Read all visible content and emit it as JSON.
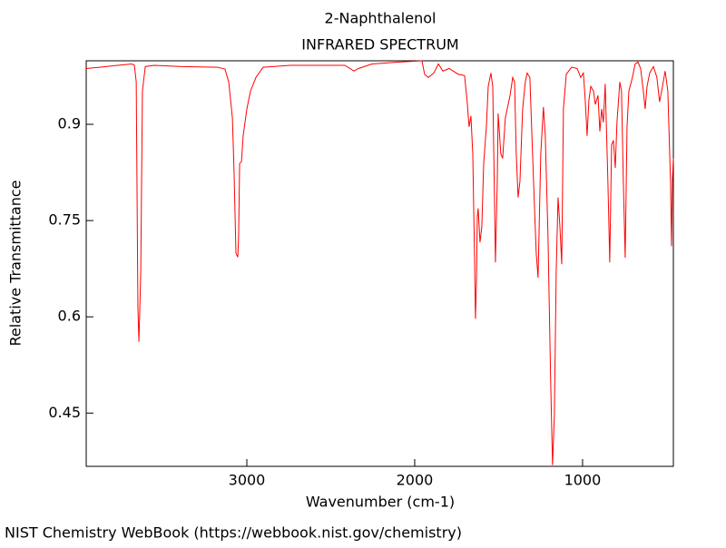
{
  "chart_data": {
    "type": "line",
    "title": "2-Naphthalenol",
    "subtitle": "INFRARED SPECTRUM",
    "x_label": "Wavenumber (cm-1)",
    "y_label": "Relative Transmittance",
    "footer": "NIST Chemistry WebBook (https://webbook.nist.gov/chemistry)",
    "xlim": [
      3957,
      459
    ],
    "ylim": [
      0.367,
      0.999
    ],
    "xticks": [
      3000,
      2000,
      1000
    ],
    "yticks": [
      0.9,
      0.75,
      0.6,
      0.45
    ],
    "series": [
      {
        "color": "#ff0000",
        "x": [
          3957,
          3876,
          3768,
          3686,
          3670,
          3659,
          3649,
          3643,
          3632,
          3622,
          3605,
          3551,
          3389,
          3173,
          3130,
          3108,
          3086,
          3076,
          3065,
          3054,
          3049,
          3043,
          3032,
          3022,
          3000,
          2978,
          2946,
          2903,
          2741,
          2416,
          2362,
          2335,
          2254,
          2092,
          1957,
          1941,
          1919,
          1886,
          1859,
          1832,
          1795,
          1741,
          1703,
          1686,
          1676,
          1665,
          1654,
          1643,
          1638,
          1632,
          1627,
          1622,
          1611,
          1600,
          1589,
          1573,
          1562,
          1546,
          1535,
          1519,
          1508,
          1503,
          1487,
          1476,
          1460,
          1432,
          1416,
          1405,
          1395,
          1384,
          1373,
          1357,
          1341,
          1330,
          1314,
          1292,
          1276,
          1265,
          1249,
          1233,
          1222,
          1206,
          1190,
          1179,
          1168,
          1157,
          1146,
          1135,
          1124,
          1114,
          1097,
          1065,
          1032,
          1011,
          995,
          984,
          973,
          962,
          951,
          935,
          924,
          908,
          897,
          886,
          876,
          865,
          849,
          838,
          827,
          816,
          805,
          795,
          778,
          768,
          757,
          746,
          735,
          724,
          703,
          687,
          670,
          654,
          638,
          627,
          616,
          600,
          578,
          557,
          541,
          524,
          508,
          492,
          476,
          470,
          465,
          459
        ],
        "values": [
          0.987,
          0.989,
          0.992,
          0.994,
          0.992,
          0.966,
          0.614,
          0.561,
          0.67,
          0.952,
          0.99,
          0.992,
          0.99,
          0.989,
          0.986,
          0.966,
          0.91,
          0.825,
          0.699,
          0.693,
          0.727,
          0.839,
          0.842,
          0.882,
          0.924,
          0.952,
          0.973,
          0.989,
          0.992,
          0.992,
          0.983,
          0.987,
          0.994,
          0.997,
          0.999,
          0.978,
          0.973,
          0.98,
          0.994,
          0.983,
          0.987,
          0.978,
          0.976,
          0.931,
          0.896,
          0.913,
          0.854,
          0.685,
          0.597,
          0.656,
          0.755,
          0.769,
          0.716,
          0.741,
          0.839,
          0.896,
          0.959,
          0.98,
          0.959,
          0.685,
          0.811,
          0.917,
          0.854,
          0.847,
          0.91,
          0.945,
          0.973,
          0.966,
          0.854,
          0.786,
          0.811,
          0.924,
          0.966,
          0.98,
          0.973,
          0.811,
          0.699,
          0.661,
          0.854,
          0.927,
          0.882,
          0.727,
          0.501,
          0.369,
          0.445,
          0.67,
          0.786,
          0.741,
          0.682,
          0.924,
          0.978,
          0.989,
          0.987,
          0.973,
          0.98,
          0.938,
          0.882,
          0.938,
          0.959,
          0.952,
          0.931,
          0.945,
          0.889,
          0.924,
          0.903,
          0.963,
          0.811,
          0.685,
          0.868,
          0.875,
          0.832,
          0.903,
          0.966,
          0.952,
          0.811,
          0.692,
          0.896,
          0.952,
          0.973,
          0.994,
          0.997,
          0.987,
          0.952,
          0.924,
          0.959,
          0.98,
          0.99,
          0.973,
          0.935,
          0.959,
          0.983,
          0.952,
          0.811,
          0.71,
          0.811,
          0.847
        ]
      }
    ]
  }
}
